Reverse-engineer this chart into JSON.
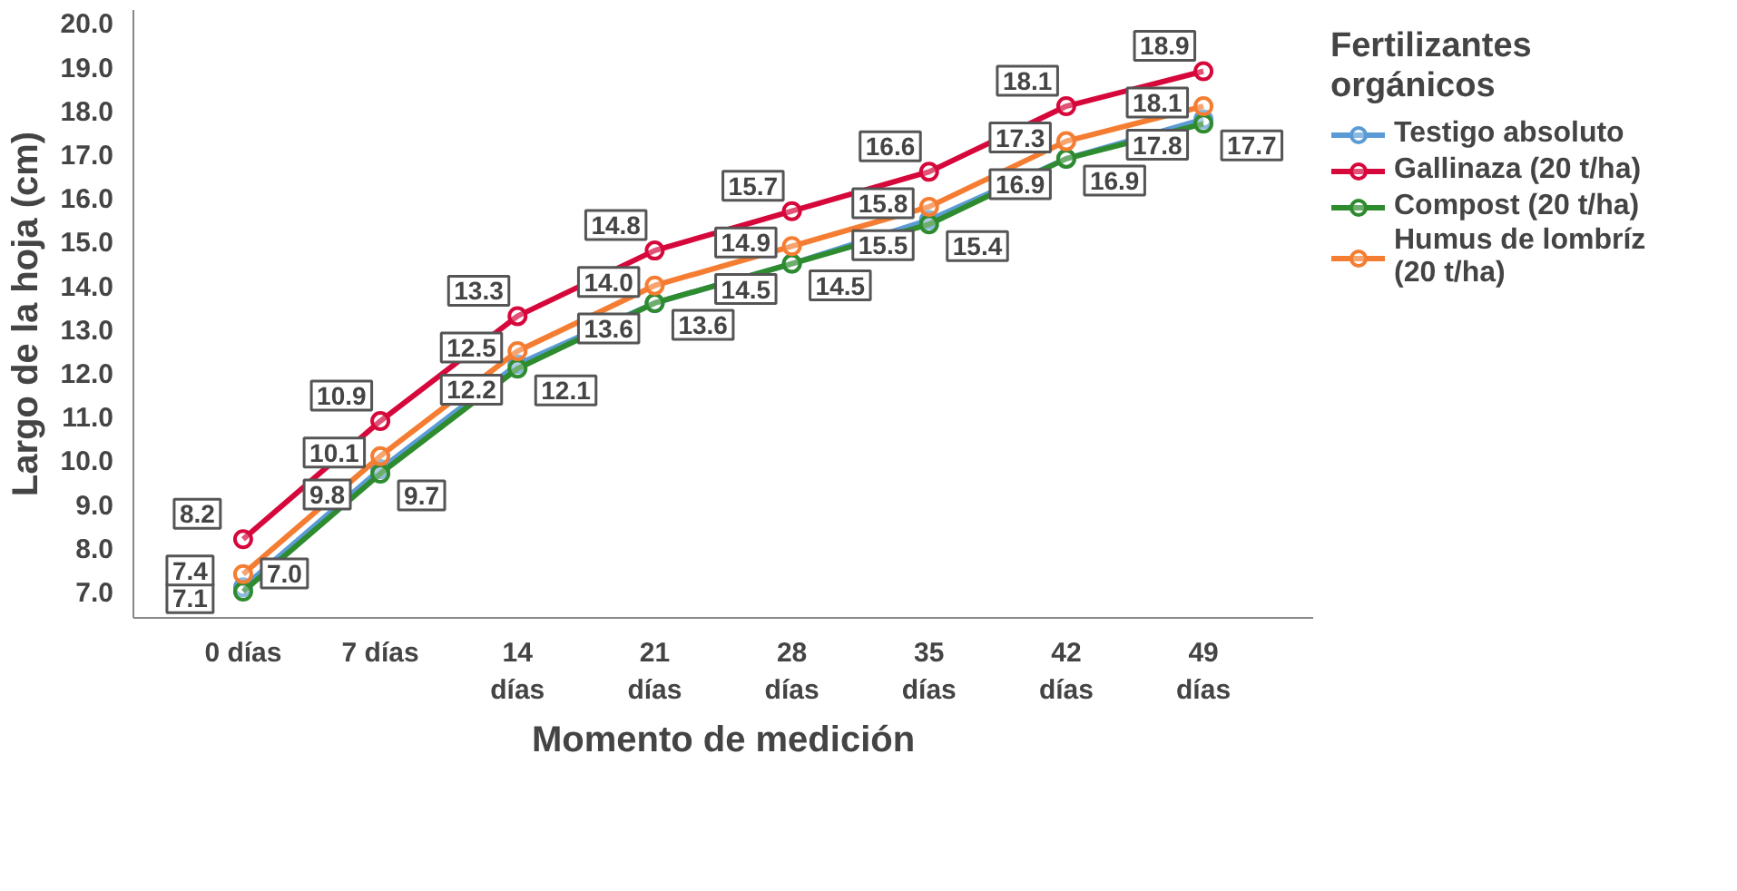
{
  "chart_data": {
    "type": "line",
    "xlabel": "Momento de medición",
    "ylabel": "Largo de la hoja (cm)",
    "legend_title": "Fertilizantes orgánicos",
    "categories": [
      "0 días",
      "7 días",
      "14 días",
      "21 días",
      "28 días",
      "35 días",
      "42 días",
      "49 días"
    ],
    "series": [
      {
        "name": "Testigo absoluto",
        "color": "#5b9bd5",
        "values": [
          7.1,
          9.8,
          12.2,
          13.6,
          14.5,
          15.5,
          16.9,
          17.8
        ],
        "value_labels": [
          "7.1",
          "9.8",
          "12.2",
          "13.6",
          "14.5",
          "15.5",
          "16.9",
          "17.8"
        ]
      },
      {
        "name": "Gallinaza (20 t/ha)",
        "color": "#d6083b",
        "values": [
          8.2,
          10.9,
          13.3,
          14.8,
          15.7,
          16.6,
          18.1,
          18.9
        ],
        "value_labels": [
          "8.2",
          "10.9",
          "13.3",
          "14.8",
          "15.7",
          "16.6",
          "18.1",
          "18.9"
        ]
      },
      {
        "name": "Compost (20 t/ha)",
        "color": "#2e8b2e",
        "values": [
          7.0,
          9.7,
          12.1,
          13.6,
          14.5,
          15.4,
          16.9,
          17.7
        ],
        "value_labels": [
          "7.0",
          "9.7",
          "12.1",
          "13.6",
          "14.5",
          "15.4",
          "16.9",
          "17.7"
        ]
      },
      {
        "name": "Humus de lombríz (20 t/ha)",
        "color": "#f57d32",
        "values": [
          7.4,
          10.1,
          12.5,
          14.0,
          14.9,
          15.8,
          17.3,
          18.1
        ],
        "value_labels": [
          "7.4",
          "10.1",
          "12.5",
          "14.0",
          "14.9",
          "15.8",
          "17.3",
          "18.1"
        ]
      }
    ],
    "ylim": [
      6.4,
      20.3
    ],
    "yticks": [
      {
        "value": 7,
        "label": "7.0"
      },
      {
        "value": 8,
        "label": "8.0"
      },
      {
        "value": 9,
        "label": "9.0"
      },
      {
        "value": 10,
        "label": "10.0"
      },
      {
        "value": 11,
        "label": "11.0"
      },
      {
        "value": 12,
        "label": "12.0"
      },
      {
        "value": 13,
        "label": "13.0"
      },
      {
        "value": 14,
        "label": "14.0"
      },
      {
        "value": 15,
        "label": "15.0"
      },
      {
        "value": 16,
        "label": "16.0"
      },
      {
        "value": 17,
        "label": "17.0"
      },
      {
        "value": 18,
        "label": "18.0"
      },
      {
        "value": 19,
        "label": "19.0"
      },
      {
        "value": 20,
        "label": "20.0"
      }
    ],
    "marker": "circle",
    "legend": "right",
    "grid": false
  }
}
